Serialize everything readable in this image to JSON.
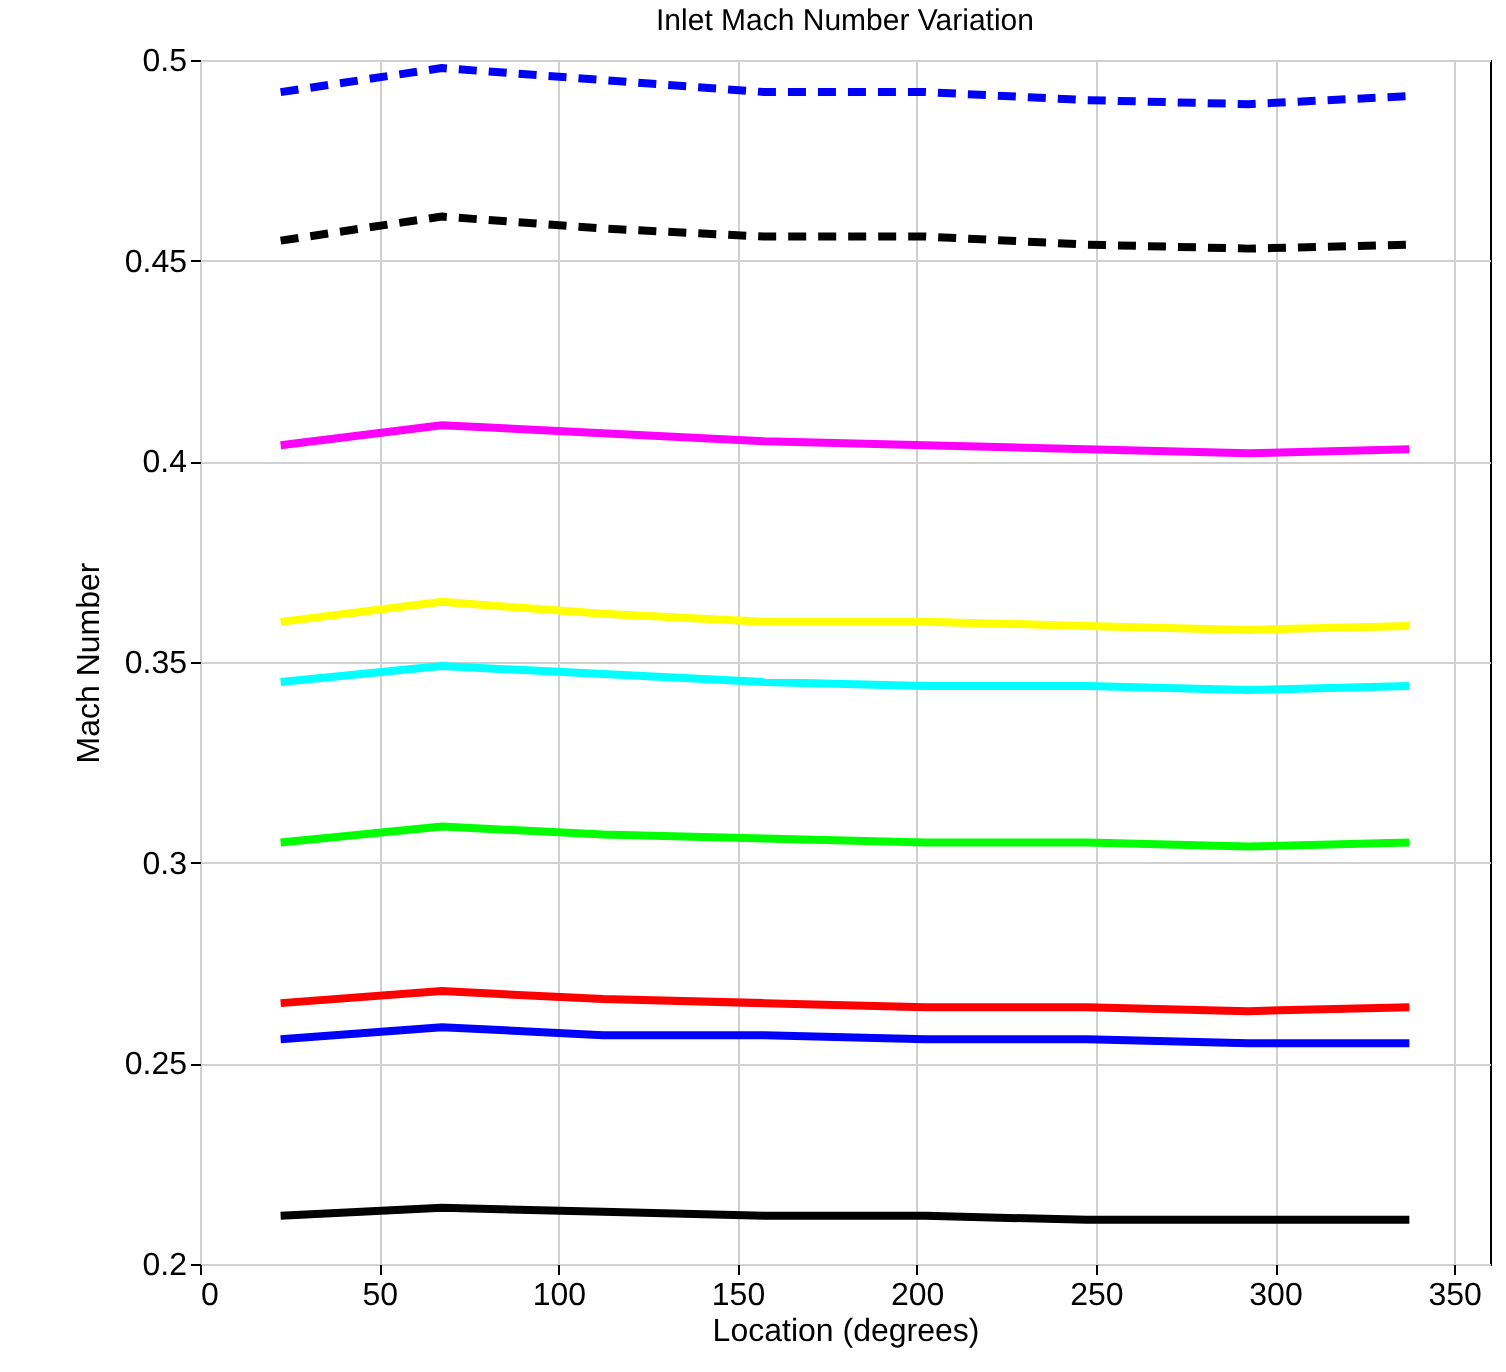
{
  "chart_data": {
    "type": "line",
    "title": "Inlet Mach Number Variation",
    "xlabel": "Location (degrees)",
    "ylabel": "Mach Number",
    "x": [
      22.5,
      67.5,
      112.5,
      157.5,
      202.5,
      247.5,
      292.5,
      337.5
    ],
    "series": [
      {
        "color": "#0000ff",
        "line_style": "dashed",
        "values": [
          0.492,
          0.498,
          0.495,
          0.492,
          0.492,
          0.49,
          0.489,
          0.491
        ]
      },
      {
        "color": "#000000",
        "line_style": "dashed",
        "values": [
          0.455,
          0.461,
          0.458,
          0.456,
          0.456,
          0.454,
          0.453,
          0.454
        ]
      },
      {
        "color": "#ff00ff",
        "line_style": "solid",
        "values": [
          0.404,
          0.409,
          0.407,
          0.405,
          0.404,
          0.403,
          0.402,
          0.403
        ]
      },
      {
        "color": "#ffff00",
        "line_style": "solid",
        "values": [
          0.36,
          0.365,
          0.362,
          0.36,
          0.36,
          0.359,
          0.358,
          0.359
        ]
      },
      {
        "color": "#00ffff",
        "line_style": "solid",
        "values": [
          0.345,
          0.349,
          0.347,
          0.345,
          0.344,
          0.344,
          0.343,
          0.344
        ]
      },
      {
        "color": "#00ff00",
        "line_style": "solid",
        "values": [
          0.305,
          0.309,
          0.307,
          0.306,
          0.305,
          0.305,
          0.304,
          0.305
        ]
      },
      {
        "color": "#ff0000",
        "line_style": "solid",
        "values": [
          0.265,
          0.268,
          0.266,
          0.265,
          0.264,
          0.264,
          0.263,
          0.264
        ]
      },
      {
        "color": "#0000ff",
        "line_style": "solid",
        "values": [
          0.256,
          0.259,
          0.257,
          0.257,
          0.256,
          0.256,
          0.255,
          0.255
        ]
      },
      {
        "color": "#000000",
        "line_style": "solid",
        "values": [
          0.212,
          0.214,
          0.213,
          0.212,
          0.212,
          0.211,
          0.211,
          0.211
        ]
      }
    ],
    "xlim": [
      0,
      360
    ],
    "xticks": [
      0,
      50,
      100,
      150,
      200,
      250,
      300,
      350
    ],
    "ylim": [
      0.2,
      0.5
    ],
    "yticks": [
      0.2,
      0.25,
      0.3,
      0.35,
      0.4,
      0.45,
      0.5
    ],
    "grid": true
  }
}
